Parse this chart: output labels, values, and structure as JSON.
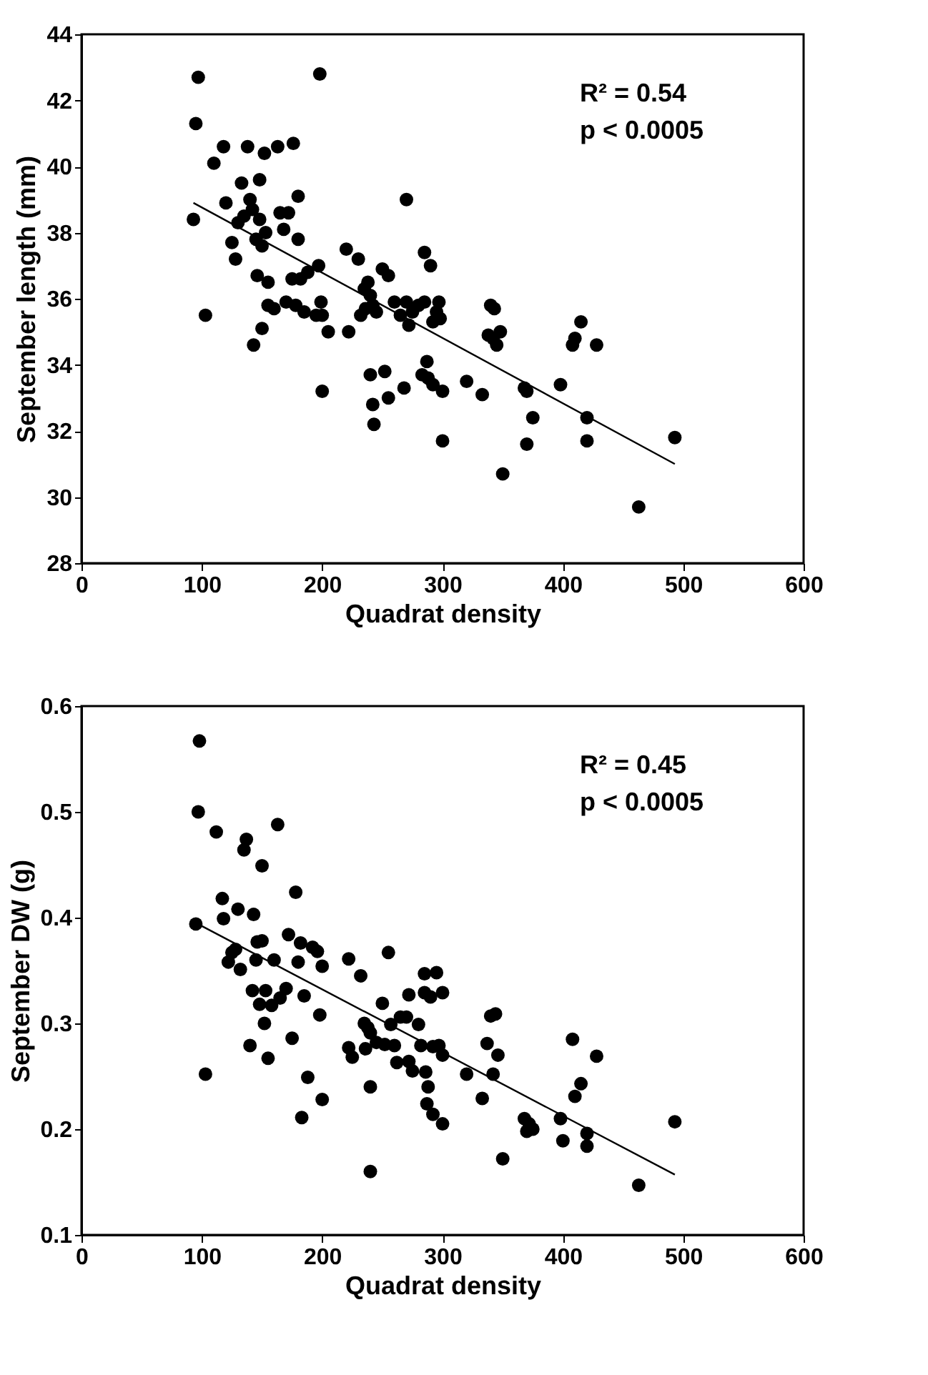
{
  "chart_data": [
    {
      "type": "scatter",
      "xlabel": "Quadrat density",
      "ylabel": "September length (mm)",
      "xlim": [
        0,
        600
      ],
      "xticks": [
        0,
        100,
        200,
        300,
        400,
        500,
        600
      ],
      "ylim": [
        28,
        44
      ],
      "yticks": [
        28,
        30,
        32,
        34,
        36,
        38,
        40,
        42,
        44
      ],
      "grid": false,
      "annotations": [
        "R² = 0.54",
        "p < 0.0005"
      ],
      "series": [
        {
          "marker": "circle",
          "color": "#000000",
          "x": [
            93,
            97,
            95,
            103,
            110,
            118,
            120,
            125,
            128,
            130,
            133,
            135,
            138,
            140,
            142,
            143,
            145,
            146,
            148,
            148,
            150,
            150,
            152,
            153,
            155,
            155,
            160,
            163,
            165,
            168,
            170,
            172,
            175,
            176,
            178,
            180,
            180,
            182,
            185,
            188,
            195,
            197,
            198,
            199,
            200,
            200,
            205,
            220,
            222,
            230,
            232,
            235,
            236,
            238,
            240,
            240,
            242,
            242,
            243,
            245,
            250,
            252,
            255,
            255,
            260,
            265,
            268,
            270,
            270,
            272,
            275,
            280,
            283,
            285,
            285,
            287,
            288,
            290,
            292,
            292,
            295,
            297,
            298,
            300,
            300,
            320,
            333,
            338,
            340,
            342,
            343,
            345,
            348,
            350,
            368,
            370,
            370,
            375,
            398,
            408,
            410,
            415,
            420,
            420,
            428,
            463,
            493
          ],
          "values": [
            38.4,
            42.7,
            41.3,
            35.5,
            40.1,
            40.6,
            38.9,
            37.7,
            37.2,
            38.3,
            39.5,
            38.5,
            40.6,
            39.0,
            38.7,
            34.6,
            37.8,
            36.7,
            39.6,
            38.4,
            37.6,
            35.1,
            40.4,
            38.0,
            36.5,
            35.8,
            35.7,
            40.6,
            38.6,
            38.1,
            35.9,
            38.6,
            36.6,
            40.7,
            35.8,
            39.1,
            37.8,
            36.6,
            35.6,
            36.8,
            35.5,
            37.0,
            42.8,
            35.9,
            35.5,
            33.2,
            35.0,
            37.5,
            35.0,
            37.2,
            35.5,
            36.3,
            35.7,
            36.5,
            36.1,
            33.7,
            35.8,
            32.8,
            32.2,
            35.6,
            36.9,
            33.8,
            36.7,
            33.0,
            35.9,
            35.5,
            33.3,
            39.0,
            35.9,
            35.2,
            35.6,
            35.8,
            33.7,
            37.4,
            35.9,
            34.1,
            33.6,
            37.0,
            33.4,
            35.3,
            35.6,
            35.9,
            35.4,
            31.7,
            33.2,
            33.5,
            33.1,
            34.9,
            35.8,
            34.8,
            35.7,
            34.6,
            35.0,
            30.7,
            33.3,
            31.6,
            33.2,
            32.4,
            33.4,
            34.6,
            34.8,
            35.3,
            32.4,
            31.7,
            34.6,
            29.7,
            31.8
          ]
        },
        {
          "type": "line",
          "marker": "none",
          "color": "#000000",
          "x": [
            93,
            493
          ],
          "values": [
            38.9,
            31.0
          ]
        }
      ]
    },
    {
      "type": "scatter",
      "xlabel": "Quadrat density",
      "ylabel": "September DW (g)",
      "xlim": [
        0,
        600
      ],
      "xticks": [
        0,
        100,
        200,
        300,
        400,
        500,
        600
      ],
      "ylim": [
        0.1,
        0.6
      ],
      "yticks": [
        0.1,
        0.2,
        0.3,
        0.4,
        0.5,
        0.6
      ],
      "grid": false,
      "annotations": [
        "R² = 0.45",
        "p < 0.0005"
      ],
      "series": [
        {
          "marker": "circle",
          "color": "#000000",
          "x": [
            95,
            98,
            97,
            103,
            112,
            117,
            118,
            122,
            125,
            128,
            130,
            132,
            135,
            137,
            140,
            142,
            143,
            145,
            146,
            148,
            150,
            150,
            152,
            153,
            155,
            158,
            160,
            163,
            165,
            170,
            172,
            175,
            178,
            180,
            182,
            183,
            185,
            188,
            192,
            196,
            198,
            200,
            200,
            222,
            222,
            225,
            232,
            235,
            236,
            238,
            240,
            240,
            240,
            245,
            250,
            252,
            255,
            257,
            260,
            262,
            265,
            270,
            272,
            272,
            275,
            280,
            282,
            285,
            285,
            286,
            287,
            288,
            290,
            292,
            292,
            295,
            297,
            300,
            300,
            300,
            320,
            333,
            337,
            340,
            342,
            344,
            346,
            350,
            368,
            370,
            372,
            375,
            398,
            400,
            408,
            410,
            415,
            420,
            420,
            428,
            463,
            493
          ],
          "values": [
            0.394,
            0.567,
            0.5,
            0.252,
            0.481,
            0.418,
            0.399,
            0.358,
            0.367,
            0.37,
            0.408,
            0.351,
            0.464,
            0.474,
            0.279,
            0.331,
            0.403,
            0.36,
            0.377,
            0.318,
            0.449,
            0.378,
            0.3,
            0.331,
            0.267,
            0.317,
            0.36,
            0.488,
            0.324,
            0.333,
            0.384,
            0.286,
            0.424,
            0.358,
            0.376,
            0.211,
            0.326,
            0.249,
            0.372,
            0.368,
            0.308,
            0.354,
            0.228,
            0.361,
            0.277,
            0.268,
            0.345,
            0.3,
            0.276,
            0.296,
            0.291,
            0.24,
            0.16,
            0.282,
            0.319,
            0.28,
            0.367,
            0.299,
            0.279,
            0.263,
            0.306,
            0.306,
            0.327,
            0.264,
            0.255,
            0.299,
            0.279,
            0.329,
            0.347,
            0.254,
            0.224,
            0.24,
            0.325,
            0.214,
            0.278,
            0.348,
            0.279,
            0.329,
            0.27,
            0.205,
            0.252,
            0.229,
            0.281,
            0.307,
            0.252,
            0.309,
            0.27,
            0.172,
            0.21,
            0.198,
            0.205,
            0.2,
            0.21,
            0.189,
            0.285,
            0.231,
            0.243,
            0.196,
            0.184,
            0.269,
            0.147,
            0.207
          ]
        },
        {
          "type": "line",
          "marker": "none",
          "color": "#000000",
          "x": [
            95,
            493
          ],
          "values": [
            0.395,
            0.157
          ]
        }
      ]
    }
  ]
}
